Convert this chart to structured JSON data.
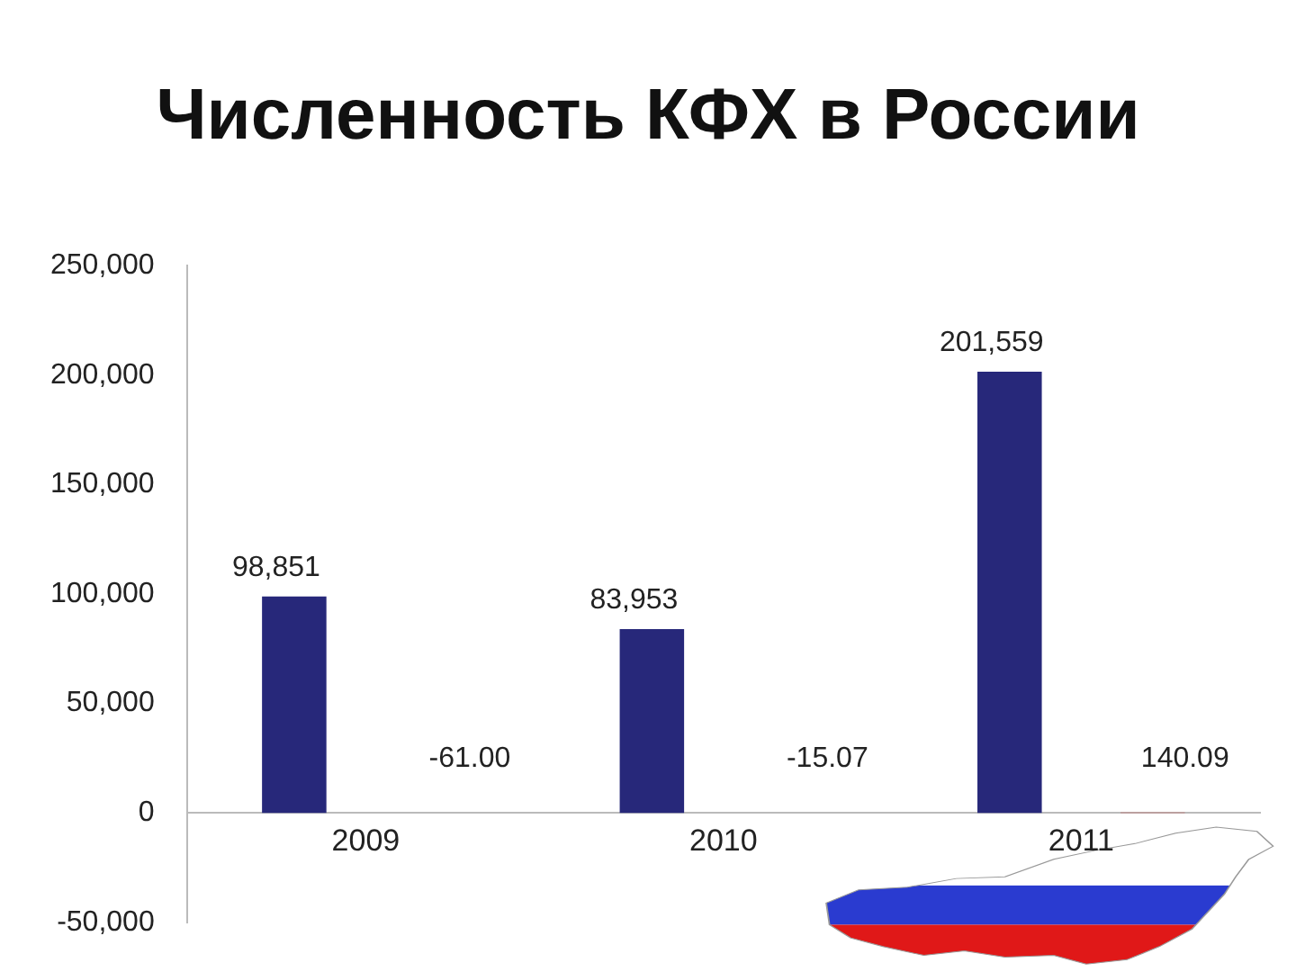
{
  "chart_data": {
    "type": "bar",
    "title": "Численность КФХ в России",
    "categories": [
      "2009",
      "2010",
      "2011"
    ],
    "series": [
      {
        "color": "#27287a",
        "values": [
          98851,
          83953,
          201559
        ],
        "value_labels": [
          "98,851",
          "83,953",
          "201,559"
        ]
      },
      {
        "color": "#c0504d",
        "values": [
          -61.0,
          -15.07,
          140.09
        ],
        "value_labels": [
          "-61.00",
          "-15.07",
          "140.09"
        ]
      }
    ],
    "ylim": [
      -50000,
      250000
    ],
    "yticks": [
      {
        "value": -50000,
        "label": "-50,000"
      },
      0,
      {
        "value": 50000,
        "label": "50,000"
      },
      {
        "value": 100000,
        "label": "100,000"
      },
      {
        "value": 150000,
        "label": "150,000"
      },
      {
        "value": 200000,
        "label": "200,000"
      },
      {
        "value": 250000,
        "label": "250,000"
      }
    ],
    "grid": false,
    "legend": false
  }
}
